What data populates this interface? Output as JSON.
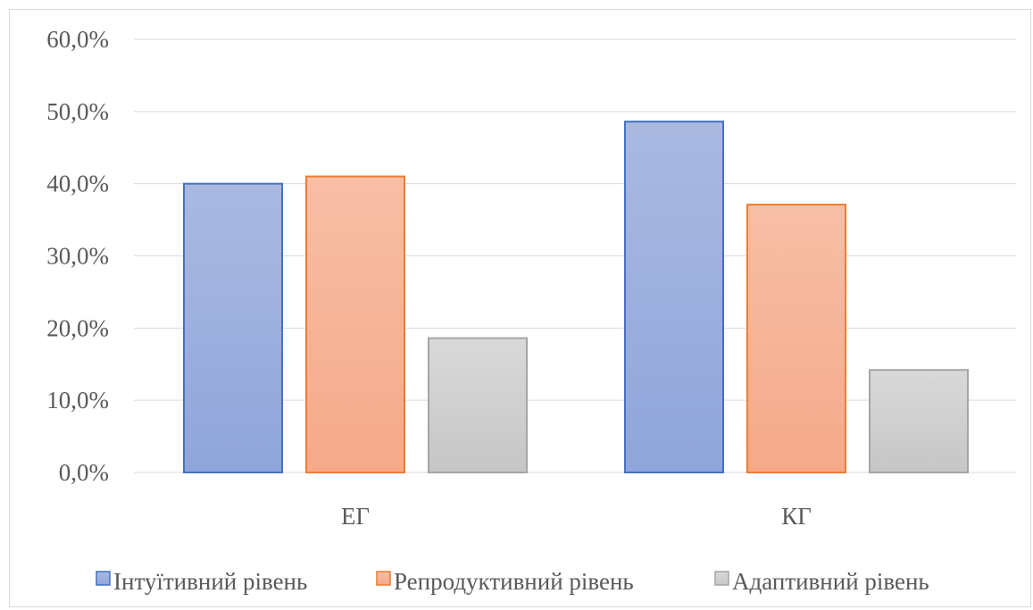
{
  "chart_data": {
    "type": "bar",
    "categories": [
      "ЕГ",
      "КГ"
    ],
    "series": [
      {
        "name": "Інтуїтивний рівень",
        "values": [
          40.0,
          48.6
        ],
        "color": "#8FA5DB",
        "stroke": "#4472C4"
      },
      {
        "name": "Репродуктивний рівень",
        "values": [
          41.0,
          37.1
        ],
        "color": "#F5A98A",
        "stroke": "#ED7D31"
      },
      {
        "name": "Адаптивний рівень",
        "values": [
          18.6,
          14.2
        ],
        "color": "#C6C6C6",
        "stroke": "#A5A5A5"
      }
    ],
    "ylim": [
      0,
      60
    ],
    "yticks": [
      "0,0%",
      "10,0%",
      "20,0%",
      "30,0%",
      "40,0%",
      "50,0%",
      "60,0%"
    ],
    "grid": true,
    "legend_position": "bottom"
  }
}
